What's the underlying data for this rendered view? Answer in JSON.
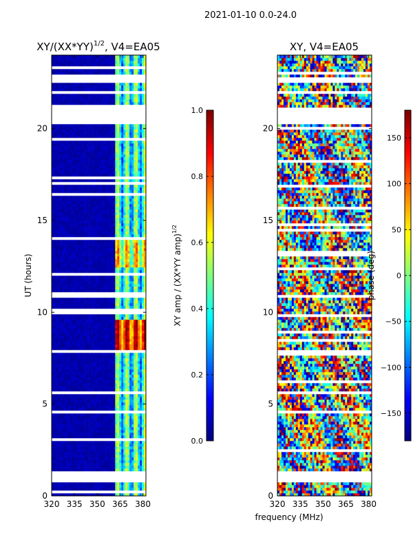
{
  "suptitle": "2021-01-10 0.0-24.0",
  "xlabel_shared": "frequency (MHz)",
  "chart_data": [
    {
      "type": "heatmap",
      "title": "XY/(XX*YY)^{1/2}, V4=EA05",
      "title_prefix": "XY/(XX*YY)",
      "title_exponent": "1/2",
      "title_suffix": ", V4=EA05",
      "xlabel": "frequency (MHz)",
      "ylabel": "UT (hours)",
      "xlim": [
        320,
        382
      ],
      "ylim": [
        0,
        24
      ],
      "xticks": [
        320,
        335,
        350,
        365,
        380
      ],
      "yticks": [
        0,
        5,
        10,
        15,
        20
      ],
      "colormap": "jet",
      "colorbar": {
        "label": "XY amp / (XX*YY amp)^{1/2}",
        "label_text": "XY amp / (XX*YY amp)",
        "label_exponent": "1/2",
        "range": [
          0.0,
          1.0
        ],
        "ticks": [
          0.0,
          0.2,
          0.4,
          0.6,
          0.8,
          1.0
        ],
        "tick_labels": [
          "0.0",
          "0.2",
          "0.4",
          "0.6",
          "0.8",
          "1.0"
        ]
      },
      "flagged_ut_ranges": [
        [
          0.75,
          1.4
        ],
        [
          20.3,
          21.2
        ],
        [
          21.9,
          22.1
        ],
        [
          22.5,
          22.8
        ],
        [
          10.75,
          11.0
        ],
        [
          7.75,
          8.0
        ]
      ],
      "notes": "Mostly low amplitude (dark blue) below ~363 MHz; higher amplitude banded structure 363-380 MHz, peaking ~0.9 around UT 8-9.5 h."
    },
    {
      "type": "heatmap",
      "title": "XY, V4=EA05",
      "xlabel": "frequency (MHz)",
      "ylabel": "",
      "xlim": [
        320,
        382
      ],
      "ylim": [
        0,
        24
      ],
      "xticks": [
        320,
        335,
        350,
        365,
        380
      ],
      "yticks": [
        0,
        5,
        10,
        15,
        20
      ],
      "colormap": "jet",
      "colorbar": {
        "label": "phase (deg)",
        "range": [
          -180,
          180
        ],
        "ticks": [
          150,
          100,
          50,
          0,
          -50,
          -100,
          -150
        ],
        "tick_labels": [
          "150",
          "100",
          "50",
          "0",
          "−50",
          "−100",
          "−150"
        ]
      },
      "flagged_ut_ranges": [
        [
          0.75,
          1.4
        ],
        [
          20.3,
          21.2
        ],
        [
          21.9,
          22.1
        ],
        [
          22.5,
          22.8
        ],
        [
          10.75,
          11.0
        ],
        [
          7.75,
          8.0
        ]
      ],
      "notes": "Noisy phase across full band with banded structure."
    }
  ]
}
